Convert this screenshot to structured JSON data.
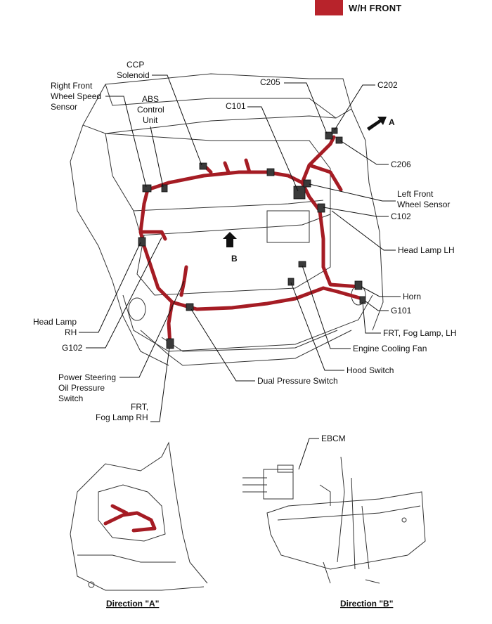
{
  "legend": {
    "label": "W/H FRONT",
    "color": "#b8232b"
  },
  "labels": {
    "ccp_solenoid": [
      "CCP",
      "Solenoid"
    ],
    "right_front_wheel_speed_sensor": [
      "Right Front",
      "Wheel Speed",
      "Sensor"
    ],
    "abs_control_unit": [
      "ABS",
      "Control",
      "Unit"
    ],
    "c205": "C205",
    "c202": "C202",
    "c101": "C101",
    "direction_a_arrow": "A",
    "c206": "C206",
    "left_front_wheel_sensor": [
      "Left Front",
      "Wheel Sensor"
    ],
    "c102": "C102",
    "head_lamp_lh": "Head Lamp LH",
    "direction_b_arrow": "B",
    "horn": "Horn",
    "g101": "G101",
    "head_lamp_rh": [
      "Head Lamp",
      "RH"
    ],
    "frt_fog_lamp_lh": "FRT, Fog Lamp, LH",
    "g102": "G102",
    "engine_cooling_fan": "Engine Cooling Fan",
    "hood_switch": "Hood Switch",
    "power_steering_oil_pressure_switch": [
      "Power Steering",
      "Oil Pressure",
      "Switch"
    ],
    "dual_pressure_switch": "Dual Pressure Switch",
    "frt_fog_lamp_rh": [
      "FRT,",
      "Fog Lamp RH"
    ],
    "ebcm": "EBCM"
  },
  "captions": {
    "direction_a": "Direction \"A\"",
    "direction_b": "Direction \"B\""
  }
}
